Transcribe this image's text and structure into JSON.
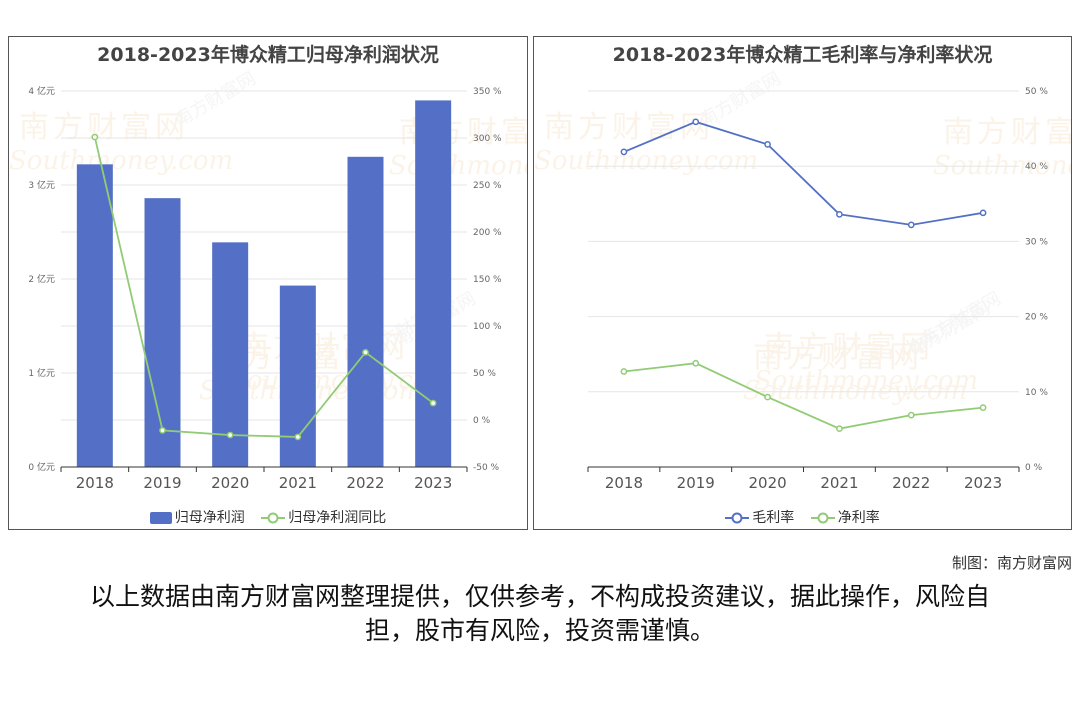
{
  "charts": {
    "left": {
      "title": "2018-2023年博众精工归母净利润状况",
      "legend": {
        "bar_label": "归母净利润",
        "line_label": "归母净利润同比"
      }
    },
    "right": {
      "title": "2018-2023年博众精工毛利率与净利率状况",
      "legend": {
        "series1_label": "毛利率",
        "series2_label": "净利率"
      }
    }
  },
  "chart_data": [
    {
      "type": "bar",
      "title": "2018-2023年博众精工归母净利润状况",
      "categories": [
        "2018",
        "2019",
        "2020",
        "2021",
        "2022",
        "2023"
      ],
      "y_left": {
        "ticks": [
          "0 亿元",
          "1 亿元",
          "2 亿元",
          "3 亿元",
          "4 亿元"
        ],
        "range": [
          0,
          4
        ]
      },
      "y_right": {
        "ticks": [
          "-50 %",
          "0 %",
          "50 %",
          "100 %",
          "150 %",
          "200 %",
          "250 %",
          "300 %",
          "350 %"
        ],
        "range": [
          -50,
          350
        ]
      },
      "series": [
        {
          "name": "归母净利润",
          "type": "bar",
          "axis": "left",
          "color": "#5470c6",
          "values": [
            3.22,
            2.86,
            2.39,
            1.93,
            3.3,
            3.9
          ]
        },
        {
          "name": "归母净利润同比",
          "type": "line",
          "axis": "right",
          "color": "#91cc75",
          "values": [
            301,
            -11,
            -16,
            -18,
            72,
            18
          ]
        }
      ],
      "grid": true,
      "legend_position": "bottom"
    },
    {
      "type": "line",
      "title": "2018-2023年博众精工毛利率与净利率状况",
      "categories": [
        "2018",
        "2019",
        "2020",
        "2021",
        "2022",
        "2023"
      ],
      "y_right": {
        "ticks": [
          "0 %",
          "10 %",
          "20 %",
          "30 %",
          "40 %",
          "50 %"
        ],
        "range": [
          0,
          50
        ]
      },
      "series": [
        {
          "name": "毛利率",
          "color": "#5470c6",
          "values": [
            41.9,
            45.9,
            42.9,
            33.6,
            32.2,
            33.8
          ]
        },
        {
          "name": "净利率",
          "color": "#91cc75",
          "values": [
            12.7,
            13.8,
            9.3,
            5.1,
            6.9,
            7.9
          ]
        }
      ],
      "grid": true,
      "legend_position": "bottom"
    }
  ],
  "footer": {
    "credit": "制图：南方财富网",
    "disclaimer": "以上数据由南方财富网整理提供，仅供参考，不构成投资建议，据此操作，风险自担，股市有风险，投资需谨慎。"
  },
  "watermark": {
    "text_cn": "南方财富网",
    "text_en": "Southmoney.com"
  }
}
